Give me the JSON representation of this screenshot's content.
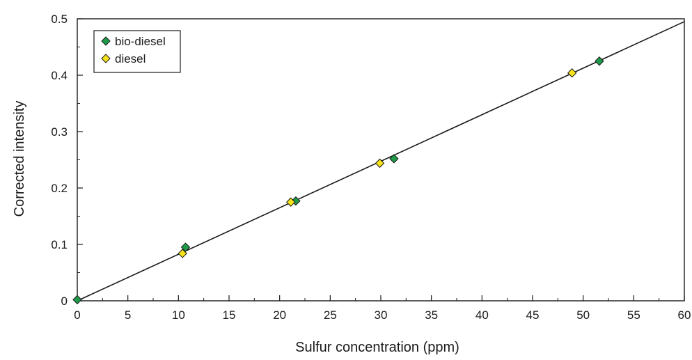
{
  "chart_data": {
    "type": "scatter",
    "title": "",
    "xlabel": "Sulfur concentration (ppm)",
    "ylabel": "Corrected intensity",
    "xlim": [
      0,
      60
    ],
    "ylim": [
      0,
      0.5
    ],
    "xticks": [
      "0",
      "5",
      "10",
      "15",
      "20",
      "25",
      "30",
      "35",
      "40",
      "45",
      "50",
      "55",
      "60"
    ],
    "yticks": [
      "0",
      "0.1",
      "0.2",
      "0.3",
      "0.4",
      "0.5"
    ],
    "grid": false,
    "legend_position": "top-left",
    "series": [
      {
        "name": "bio-diesel",
        "marker": "diamond",
        "color": "#1f9a48",
        "x": [
          0,
          10.7,
          21.6,
          31.3,
          51.6
        ],
        "y": [
          0.002,
          0.095,
          0.177,
          0.252,
          0.425
        ]
      },
      {
        "name": "diesel",
        "marker": "diamond",
        "color": "#f5e21a",
        "x": [
          10.4,
          21.1,
          29.9,
          48.9
        ],
        "y": [
          0.084,
          0.175,
          0.244,
          0.404
        ]
      }
    ],
    "fit_line": {
      "type": "linear",
      "x": [
        0,
        60
      ],
      "y": [
        0,
        0.495
      ],
      "color": "#1a1a1a"
    }
  }
}
